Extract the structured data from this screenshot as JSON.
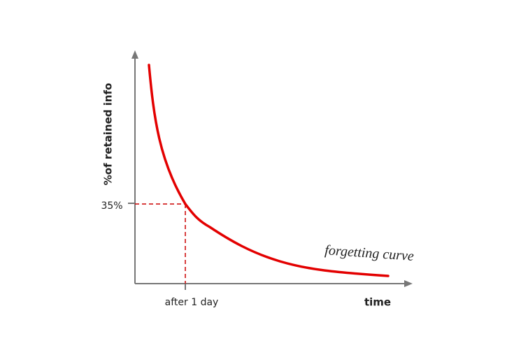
{
  "diagram": {
    "y_axis_label": "%of retained info",
    "x_axis_label": "time",
    "y_marker_label": "35%",
    "x_marker_label": "after 1 day",
    "curve_label": "forgetting curve"
  }
}
